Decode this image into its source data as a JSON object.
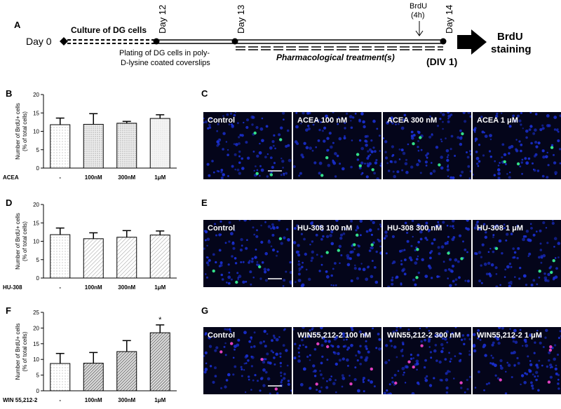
{
  "panel_letters": {
    "A": "A",
    "B": "B",
    "C": "C",
    "D": "D",
    "E": "E",
    "F": "F",
    "G": "G"
  },
  "timeline": {
    "day0": "Day 0",
    "culture": "Culture of DG cells",
    "day12": "Day 12",
    "day13": "Day 13",
    "day14": "Day 14",
    "plating_line1": "Plating of DG cells in poly-",
    "plating_line2": "D-lysine coated coverslips",
    "brdu_label": "BrdU",
    "brdu_time": "(4h)",
    "pharm": "Pharmacological treatment(s)",
    "div": "(DIV 1)",
    "staining_line1": "BrdU",
    "staining_line2": "staining"
  },
  "chart_data": [
    {
      "type": "bar",
      "ylabel": "Number of BrdU+ cells\n(% of total cells)",
      "row_label": "ACEA",
      "categories": [
        "-",
        "100nM",
        "300nM",
        "1μM"
      ],
      "values": [
        11.8,
        11.9,
        12.2,
        13.5
      ],
      "errors": [
        1.8,
        2.9,
        0.5,
        1.0
      ],
      "ylim": [
        0,
        20
      ],
      "yticks": [
        "0",
        "5",
        "10",
        "15",
        "20"
      ],
      "pattern": [
        "dots-sparse",
        "dots-dense",
        "dots-dense",
        "dots-light"
      ],
      "annotations": []
    },
    {
      "type": "bar",
      "ylabel": "Number of BrdU+ cells\n(% of total cells)",
      "row_label": "HU-308",
      "categories": [
        "-",
        "100nM",
        "300nM",
        "1μM"
      ],
      "values": [
        11.8,
        10.7,
        11.1,
        11.7
      ],
      "errors": [
        1.8,
        1.6,
        1.8,
        1.1
      ],
      "ylim": [
        0,
        20
      ],
      "yticks": [
        "0",
        "5",
        "10",
        "15",
        "20"
      ],
      "pattern": [
        "dots-sparse",
        "hatch-light",
        "hatch-light",
        "hatch-light"
      ],
      "annotations": []
    },
    {
      "type": "bar",
      "ylabel": "Number of BrdU+ cells\n(% of total cells)",
      "row_label": "WIN 55,212-2",
      "categories": [
        "-",
        "100nM",
        "300nM",
        "1μM"
      ],
      "values": [
        8.7,
        8.8,
        12.5,
        18.5
      ],
      "errors": [
        3.2,
        3.4,
        3.5,
        2.5
      ],
      "ylim": [
        0,
        25
      ],
      "yticks": [
        "0",
        "5",
        "10",
        "15",
        "20",
        "25"
      ],
      "pattern": [
        "dots-sparse",
        "hatch-dense",
        "hatch-dense",
        "hatch-dense"
      ],
      "annotations": [
        "",
        "",
        "",
        "*"
      ]
    }
  ],
  "micrographs": [
    {
      "labels": [
        "Control",
        "ACEA 100 nM",
        "ACEA 300 nM",
        "ACEA 1 μM"
      ],
      "marker_color": "#33e08a"
    },
    {
      "labels": [
        "Control",
        "HU-308 100 nM",
        "HU-308 300 nM",
        "HU-308 1 μM"
      ],
      "marker_color": "#33e08a"
    },
    {
      "labels": [
        "Control",
        "WIN55,212-2 100 nM",
        "WIN55,212-2 300 nM",
        "WIN55,212-2 1 μM"
      ],
      "marker_color": "#e040c0"
    }
  ],
  "colors": {
    "nucleus": "#1a2fd0",
    "background": "#04051a"
  }
}
